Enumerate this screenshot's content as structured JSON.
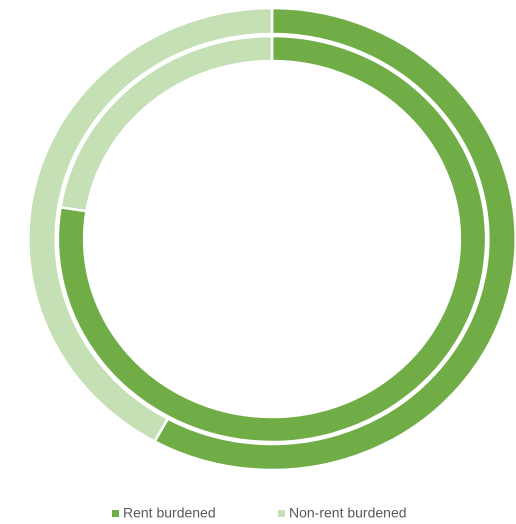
{
  "chart_data": {
    "type": "doughnut",
    "categories": [
      "Rent burdened",
      "Non-rent burdened"
    ],
    "colors": [
      "#70ad47",
      "#c5e0b4"
    ],
    "series": [
      {
        "values": [
          77.5,
          22.5
        ]
      },
      {
        "values": [
          58,
          42
        ]
      }
    ],
    "legend": "bottom"
  }
}
